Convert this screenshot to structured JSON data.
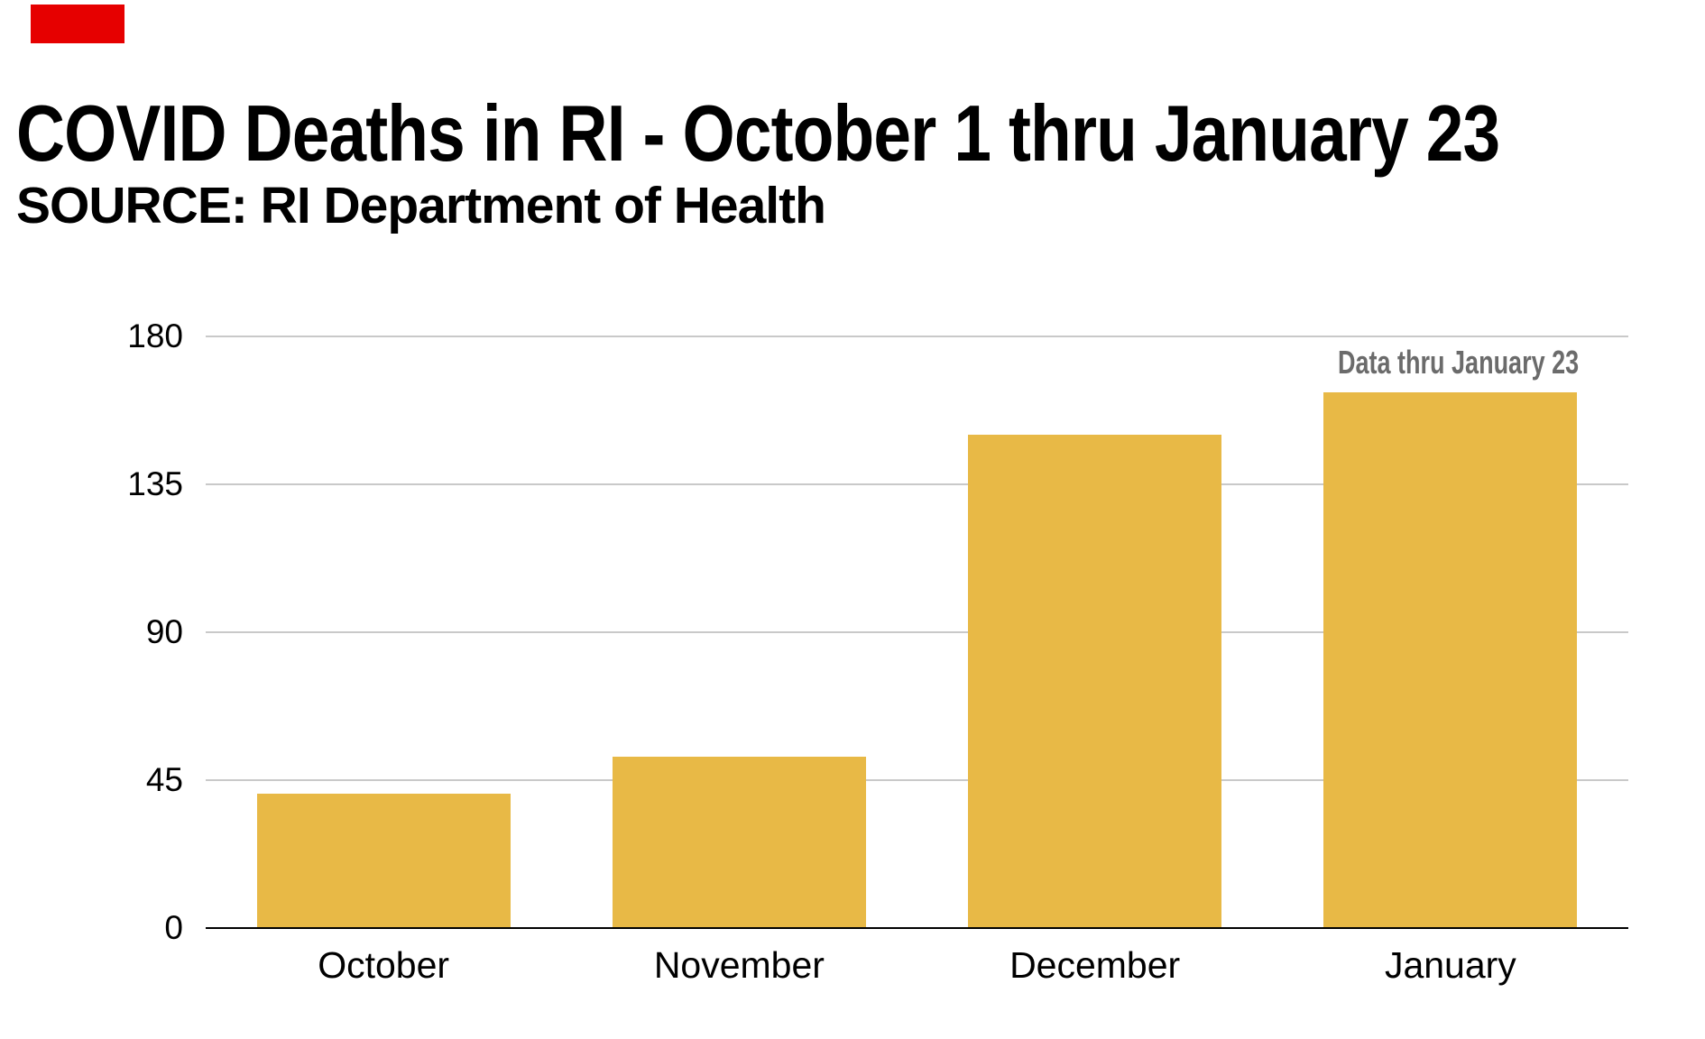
{
  "accent_color": "#e60000",
  "chart_data": {
    "type": "bar",
    "title": "COVID Deaths in RI - October 1 thru January 23",
    "subtitle": "SOURCE: RI Department of Health",
    "categories": [
      "October",
      "November",
      "December",
      "January"
    ],
    "values": [
      41,
      52,
      150,
      163
    ],
    "yticks": [
      0,
      45,
      90,
      135,
      180
    ],
    "ylim": [
      0,
      180
    ],
    "xlabel": "",
    "ylabel": "",
    "grid": true,
    "legend": "none",
    "bar_color": "#e8b946",
    "gridline_color": "#c9c9c9",
    "axis_color": "#000000",
    "annotation": {
      "text": "Data thru January 23",
      "color": "#6b6b6b",
      "position": "above January bar, right-aligned"
    }
  }
}
